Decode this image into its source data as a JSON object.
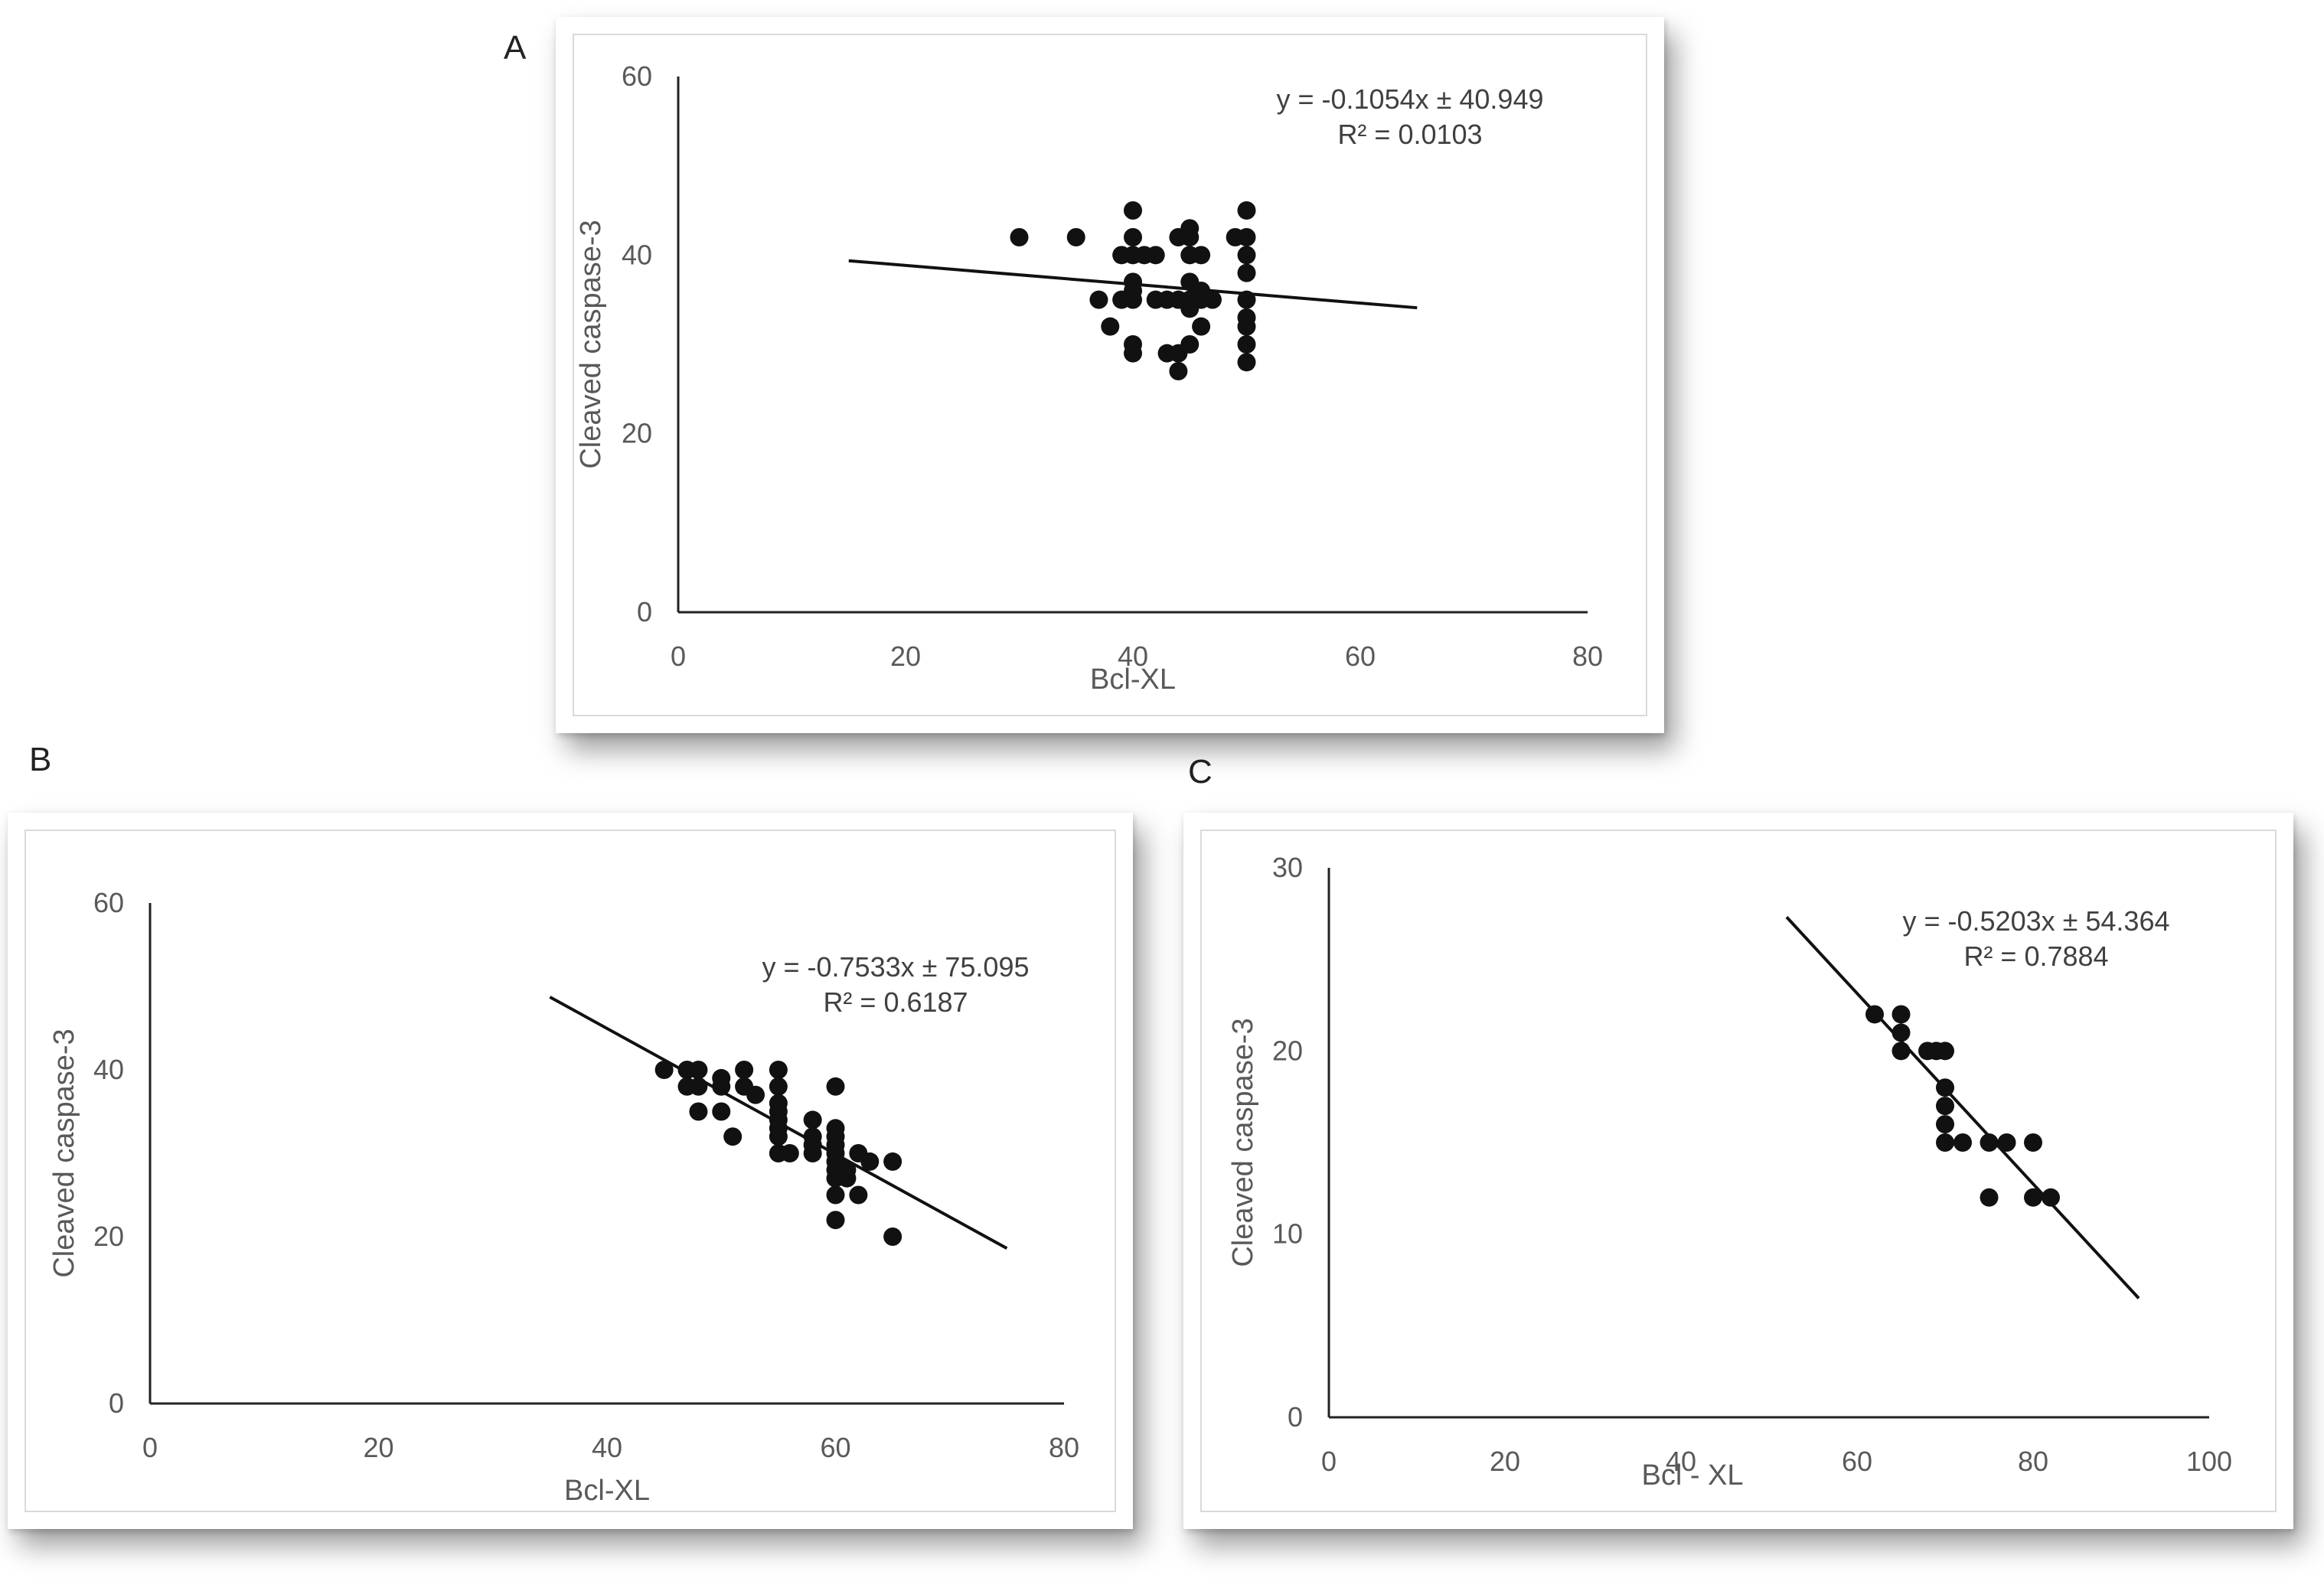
{
  "panels": [
    {
      "letter": "A",
      "eq_line1": "y = -0.1054x ± 40.949",
      "eq_line2": "R² = 0.0103"
    },
    {
      "letter": "B",
      "eq_line1": "y = -0.7533x ± 75.095",
      "eq_line2": "R² = 0.6187"
    },
    {
      "letter": "C",
      "eq_line1": "y = -0.5203x ± 54.364",
      "eq_line2": "R² = 0.7884"
    }
  ],
  "chart_data": [
    {
      "type": "scatter",
      "panel": "A",
      "title": "",
      "xlabel": "Bcl-XL",
      "ylabel": "Cleaved caspase-3",
      "xlim": [
        0,
        80
      ],
      "ylim": [
        0,
        60
      ],
      "xticks": [
        0,
        20,
        40,
        60,
        80
      ],
      "yticks": [
        0,
        20,
        40,
        60
      ],
      "trendline": {
        "slope": -0.1054,
        "intercept": 40.949,
        "x_range": [
          15,
          65
        ]
      },
      "points": [
        [
          30,
          42
        ],
        [
          35,
          42
        ],
        [
          37,
          35
        ],
        [
          38,
          32
        ],
        [
          39,
          40
        ],
        [
          39,
          35
        ],
        [
          40,
          45
        ],
        [
          40,
          42
        ],
        [
          40,
          40
        ],
        [
          40,
          37
        ],
        [
          40,
          36
        ],
        [
          40,
          35
        ],
        [
          40,
          30
        ],
        [
          40,
          29
        ],
        [
          41,
          40
        ],
        [
          42,
          40
        ],
        [
          42,
          35
        ],
        [
          43,
          35
        ],
        [
          43,
          29
        ],
        [
          44,
          42
        ],
        [
          44,
          35
        ],
        [
          44,
          29
        ],
        [
          44,
          27
        ],
        [
          45,
          43
        ],
        [
          45,
          42
        ],
        [
          45,
          40
        ],
        [
          45,
          37
        ],
        [
          45,
          35
        ],
        [
          45,
          34
        ],
        [
          45,
          30
        ],
        [
          46,
          40
        ],
        [
          46,
          36
        ],
        [
          46,
          35
        ],
        [
          46,
          32
        ],
        [
          47,
          35
        ],
        [
          49,
          42
        ],
        [
          50,
          45
        ],
        [
          50,
          42
        ],
        [
          50,
          40
        ],
        [
          50,
          38
        ],
        [
          50,
          35
        ],
        [
          50,
          33
        ],
        [
          50,
          32
        ],
        [
          50,
          30
        ],
        [
          50,
          28
        ]
      ]
    },
    {
      "type": "scatter",
      "panel": "B",
      "title": "",
      "xlabel": "Bcl-XL",
      "ylabel": "Cleaved caspase-3",
      "xlim": [
        0,
        80
      ],
      "ylim": [
        0,
        60
      ],
      "xticks": [
        0,
        20,
        40,
        60,
        80
      ],
      "yticks": [
        0,
        20,
        40,
        60
      ],
      "trendline": {
        "slope": -0.7533,
        "intercept": 75.095,
        "x_range": [
          35,
          75
        ]
      },
      "points": [
        [
          45,
          40
        ],
        [
          47,
          40
        ],
        [
          47,
          38
        ],
        [
          48,
          40
        ],
        [
          48,
          38
        ],
        [
          48,
          35
        ],
        [
          50,
          39
        ],
        [
          50,
          38
        ],
        [
          50,
          35
        ],
        [
          51,
          32
        ],
        [
          52,
          40
        ],
        [
          52,
          38
        ],
        [
          53,
          37
        ],
        [
          55,
          40
        ],
        [
          55,
          38
        ],
        [
          55,
          36
        ],
        [
          55,
          35
        ],
        [
          55,
          34
        ],
        [
          55,
          33
        ],
        [
          55,
          32
        ],
        [
          55,
          30
        ],
        [
          56,
          30
        ],
        [
          58,
          34
        ],
        [
          58,
          32
        ],
        [
          58,
          31
        ],
        [
          58,
          30
        ],
        [
          60,
          38
        ],
        [
          60,
          33
        ],
        [
          60,
          32
        ],
        [
          60,
          31
        ],
        [
          60,
          30
        ],
        [
          60,
          29
        ],
        [
          60,
          28
        ],
        [
          60,
          27
        ],
        [
          60,
          25
        ],
        [
          60,
          22
        ],
        [
          61,
          27
        ],
        [
          61,
          28
        ],
        [
          62,
          30
        ],
        [
          62,
          25
        ],
        [
          63,
          29
        ],
        [
          65,
          29
        ],
        [
          65,
          20
        ]
      ]
    },
    {
      "type": "scatter",
      "panel": "C",
      "title": "",
      "xlabel": "Bcl - XL",
      "ylabel": "Cleaved caspase-3",
      "xlim": [
        0,
        100
      ],
      "ylim": [
        0,
        30
      ],
      "xticks": [
        0,
        20,
        40,
        60,
        80,
        100
      ],
      "yticks": [
        0,
        10,
        20,
        30
      ],
      "trendline": {
        "slope": -0.5203,
        "intercept": 54.364,
        "x_range": [
          52,
          92
        ]
      },
      "points": [
        [
          62,
          22
        ],
        [
          65,
          22
        ],
        [
          65,
          21
        ],
        [
          65,
          20
        ],
        [
          68,
          20
        ],
        [
          69,
          20
        ],
        [
          70,
          20
        ],
        [
          70,
          18
        ],
        [
          70,
          17
        ],
        [
          70,
          16
        ],
        [
          70,
          15
        ],
        [
          72,
          15
        ],
        [
          75,
          15
        ],
        [
          75,
          12
        ],
        [
          77,
          15
        ],
        [
          80,
          15
        ],
        [
          80,
          12
        ],
        [
          82,
          12
        ]
      ]
    }
  ]
}
